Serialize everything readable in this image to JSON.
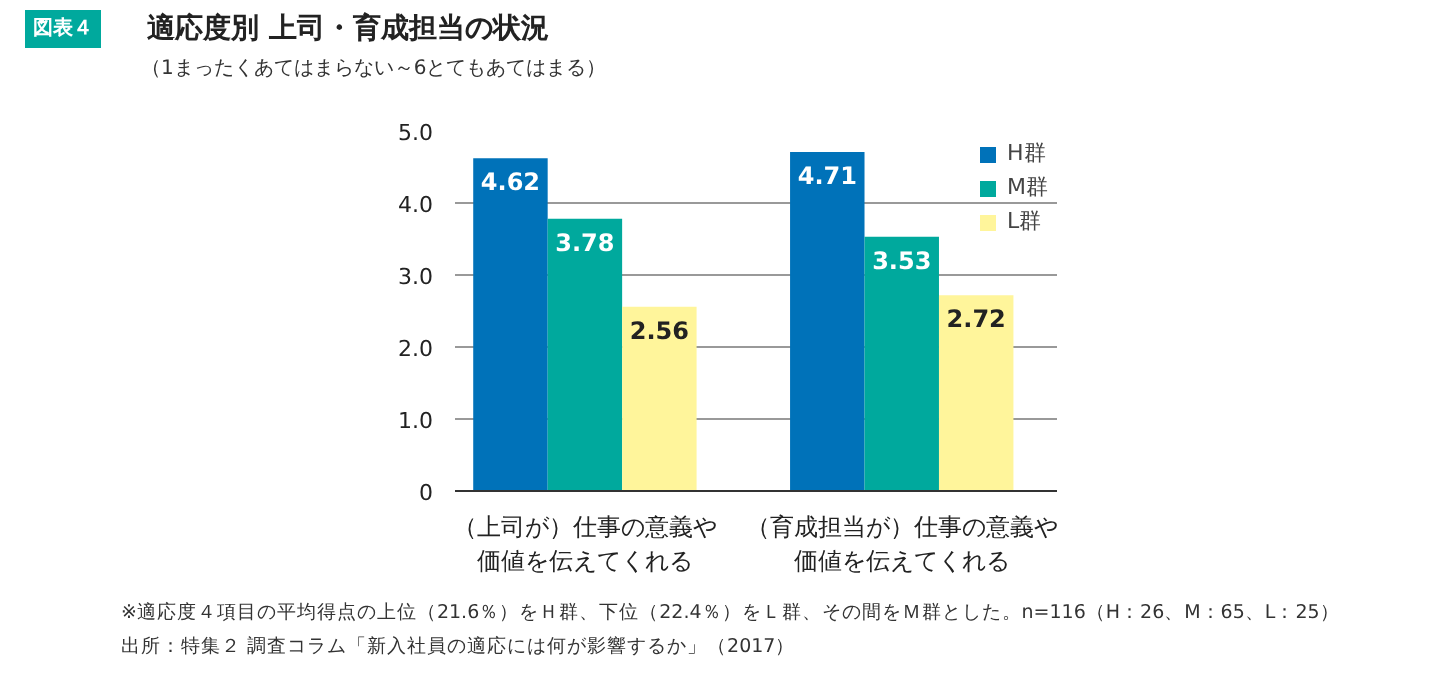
{
  "chart_data": {
    "type": "bar",
    "title": "適応度別 上司・育成担当の状況",
    "subtitle": "（1まったくあてはまらない～6とてもあてはまる）",
    "categories": [
      "（上司が）仕事の意義や価値を伝えてくれる",
      "（育成担当が）仕事の意義や価値を伝えてくれる"
    ],
    "series": [
      {
        "name": "H群",
        "color": "#0072b9",
        "values": [
          4.62,
          4.71
        ]
      },
      {
        "name": "M群",
        "color": "#00a99d",
        "values": [
          3.78,
          3.53
        ]
      },
      {
        "name": "L群",
        "color": "#fff59b",
        "values": [
          2.56,
          2.72
        ]
      }
    ],
    "ylim": [
      0,
      5
    ],
    "yticks": [
      {
        "value": 0,
        "label": "0"
      },
      {
        "value": 1,
        "label": "1.0"
      },
      {
        "value": 2,
        "label": "2.0"
      },
      {
        "value": 3,
        "label": "3.0"
      },
      {
        "value": 4,
        "label": "4.0"
      },
      {
        "value": 5,
        "label": "5.0"
      }
    ],
    "grid": "y",
    "legend": "top right",
    "data_labels": true,
    "annotations": [
      "図表４",
      "※適応度４項目の平均得点の上位（21.6％）をＨ群、下位（22.4％）をＬ群、その間をＭ群とした。n=116（H：26、M：65、L：25）",
      "出所：特集２ 調査コラム「新入社員の適応には何が影響するか」（2017）"
    ]
  }
}
